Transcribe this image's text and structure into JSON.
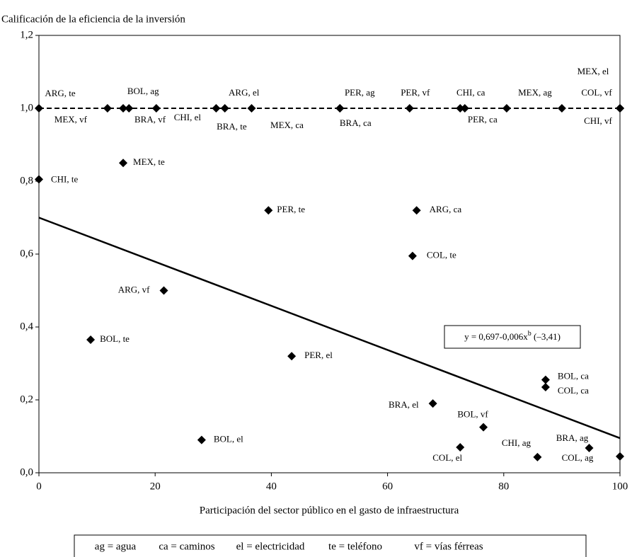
{
  "chart_data": {
    "type": "scatter",
    "title": "Calificación de la eficiencia de la inversión",
    "x_label": "Participación del sector público en el gasto de infraestructura",
    "xlim": [
      0,
      100
    ],
    "ylim": [
      0,
      1.2
    ],
    "xticks": [
      0,
      20,
      40,
      60,
      80,
      100
    ],
    "yticks": [
      {
        "value": 0,
        "label": "0,0"
      },
      {
        "value": 0.2,
        "label": "0,2"
      },
      {
        "value": 0.4,
        "label": "0,4"
      },
      {
        "value": 0.6,
        "label": "0,6"
      },
      {
        "value": 0.8,
        "label": "0,8"
      },
      {
        "value": 1.0,
        "label": "1,0"
      },
      {
        "value": 1.2,
        "label": "1,2"
      }
    ],
    "series": [
      {
        "color": "#000000",
        "x": [
          0,
          11.8,
          14.5,
          15.5,
          20.2,
          30.5,
          32,
          36.6,
          51.8,
          51.8,
          63.8,
          72.5,
          73.3,
          80.5,
          90,
          100,
          100,
          100,
          0,
          14.5,
          39.5,
          65,
          64.3,
          21.5,
          8.9,
          43.5,
          87.2,
          87.2,
          67.8,
          76.5,
          28,
          72.5,
          85.8,
          94.7,
          100
        ],
        "values": [
          1,
          1,
          1,
          1,
          1,
          1,
          1,
          1,
          1,
          1,
          1,
          1,
          1,
          1,
          1,
          1,
          1,
          1,
          0.805,
          0.85,
          0.72,
          0.72,
          0.595,
          0.5,
          0.365,
          0.32,
          0.255,
          0.235,
          0.19,
          0.125,
          0.09,
          0.07,
          0.043,
          0.068,
          0.045
        ],
        "labels": [
          "ARG, te",
          "MEX, vf",
          "BRA, vf",
          "BOL, ag",
          "CHI, el",
          "BRA, te",
          "ARG, el",
          "MEX, ca",
          "PER, ag",
          "BRA, ca",
          "PER, vf",
          "CHI, ca",
          "PER, ca",
          "MEX, ag",
          null,
          "MEX, el",
          "COL, vf",
          "CHI, vf",
          "CHI, te",
          "MEX, te",
          "PER, te",
          "ARG, ca",
          "COL, te",
          "ARG, vf",
          "BOL, te",
          "PER, el",
          "BOL, ca",
          "COL, ca",
          "BRA, el",
          "BOL, vf",
          "BOL, el",
          "COL, el",
          "CHI, ag",
          "BRA, ag",
          "COL, ag"
        ]
      }
    ],
    "lines": [
      {
        "style": "dashed",
        "x": [
          0,
          100
        ],
        "values": [
          1,
          1
        ]
      },
      {
        "style": "solid",
        "x": [
          0,
          100
        ],
        "values": [
          0.7,
          0.095
        ]
      }
    ],
    "annotation": [
      "y = 0,697-0,006x",
      "b",
      " (–3,41)"
    ],
    "legend_notes": [
      "ag = agua",
      "ca = caminos",
      "el = electricidad",
      "te = teléfono",
      "vf = vías férreas"
    ]
  }
}
